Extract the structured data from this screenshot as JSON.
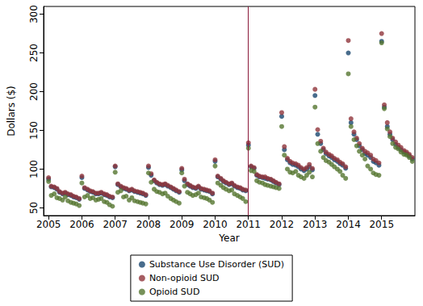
{
  "chart_data": {
    "type": "scatter",
    "x_label": "Year",
    "y_label": "Dollars ($)",
    "xlim": [
      2004.85,
      2016
    ],
    "xticks": [
      2005,
      2006,
      2007,
      2008,
      2009,
      2010,
      2011,
      2012,
      2013,
      2014,
      2015
    ],
    "ylim": [
      40,
      310
    ],
    "yticks": [
      50,
      100,
      150,
      200,
      250,
      300
    ],
    "grid": false,
    "legend": "bottom",
    "marker": "circle",
    "reference_lines": [
      {
        "x": 2011,
        "color": "#8b1a3a"
      }
    ],
    "x": [
      2005,
      2005.08,
      2005.17,
      2005.25,
      2005.33,
      2005.42,
      2005.5,
      2005.58,
      2005.67,
      2005.75,
      2005.83,
      2005.92,
      2006,
      2006.08,
      2006.17,
      2006.25,
      2006.33,
      2006.42,
      2006.5,
      2006.58,
      2006.67,
      2006.75,
      2006.83,
      2006.92,
      2007,
      2007.08,
      2007.17,
      2007.25,
      2007.33,
      2007.42,
      2007.5,
      2007.58,
      2007.67,
      2007.75,
      2007.83,
      2007.92,
      2008,
      2008.08,
      2008.17,
      2008.25,
      2008.33,
      2008.42,
      2008.5,
      2008.58,
      2008.67,
      2008.75,
      2008.83,
      2008.92,
      2009,
      2009.08,
      2009.17,
      2009.25,
      2009.33,
      2009.42,
      2009.5,
      2009.58,
      2009.67,
      2009.75,
      2009.83,
      2009.92,
      2010,
      2010.08,
      2010.17,
      2010.25,
      2010.33,
      2010.42,
      2010.5,
      2010.58,
      2010.67,
      2010.75,
      2010.83,
      2010.92,
      2011,
      2011.08,
      2011.17,
      2011.25,
      2011.33,
      2011.42,
      2011.5,
      2011.58,
      2011.67,
      2011.75,
      2011.83,
      2011.92,
      2012,
      2012.08,
      2012.17,
      2012.25,
      2012.33,
      2012.42,
      2012.5,
      2012.58,
      2012.67,
      2012.75,
      2012.83,
      2012.92,
      2013,
      2013.08,
      2013.17,
      2013.25,
      2013.33,
      2013.42,
      2013.5,
      2013.58,
      2013.67,
      2013.75,
      2013.83,
      2013.92,
      2014,
      2014.08,
      2014.17,
      2014.25,
      2014.33,
      2014.42,
      2014.5,
      2014.58,
      2014.67,
      2014.75,
      2014.83,
      2014.92,
      2015,
      2015.08,
      2015.17,
      2015.25,
      2015.33,
      2015.42,
      2015.5,
      2015.58,
      2015.67,
      2015.75,
      2015.83,
      2015.92
    ],
    "series": [
      {
        "name": "Substance Use Disorder (SUD)",
        "color": "#1a476f",
        "values": [
          87,
          77,
          76,
          74,
          70,
          68,
          69,
          67,
          66,
          64,
          63,
          61,
          89,
          75,
          73,
          71,
          70,
          68,
          68,
          69,
          67,
          66,
          64,
          63,
          103,
          80,
          77,
          75,
          74,
          72,
          73,
          71,
          70,
          69,
          68,
          66,
          102,
          92,
          85,
          82,
          80,
          79,
          80,
          78,
          76,
          74,
          72,
          70,
          99,
          85,
          80,
          78,
          76,
          75,
          77,
          74,
          73,
          72,
          71,
          68,
          110,
          90,
          87,
          84,
          82,
          80,
          81,
          78,
          76,
          75,
          73,
          72,
          131,
          103,
          101,
          92,
          90,
          89,
          88,
          87,
          86,
          84,
          82,
          80,
          168,
          125,
          112,
          108,
          106,
          105,
          103,
          100,
          98,
          100,
          103,
          99,
          195,
          145,
          133,
          125,
          120,
          117,
          115,
          112,
          110,
          107,
          105,
          101,
          250,
          160,
          145,
          138,
          130,
          125,
          120,
          118,
          115,
          110,
          108,
          105,
          265,
          180,
          155,
          145,
          138,
          132,
          128,
          125,
          122,
          120,
          117,
          113
        ]
      },
      {
        "name": "Non-opioid SUD",
        "color": "#90353b",
        "values": [
          89,
          78,
          77,
          75,
          71,
          69,
          70,
          68,
          67,
          65,
          64,
          62,
          91,
          76,
          74,
          72,
          71,
          69,
          69,
          70,
          68,
          67,
          65,
          64,
          104,
          81,
          78,
          76,
          75,
          73,
          74,
          72,
          71,
          70,
          69,
          67,
          104,
          94,
          86,
          83,
          81,
          80,
          81,
          79,
          77,
          75,
          73,
          71,
          101,
          87,
          81,
          79,
          77,
          76,
          78,
          75,
          74,
          73,
          72,
          69,
          112,
          91,
          88,
          85,
          83,
          81,
          82,
          79,
          77,
          76,
          74,
          73,
          134,
          104,
          102,
          93,
          91,
          90,
          90,
          88,
          87,
          85,
          83,
          81,
          173,
          129,
          114,
          110,
          108,
          107,
          105,
          102,
          100,
          102,
          106,
          101,
          203,
          151,
          136,
          127,
          122,
          119,
          117,
          114,
          112,
          109,
          107,
          103,
          266,
          165,
          148,
          140,
          133,
          127,
          123,
          121,
          118,
          113,
          111,
          108,
          275,
          183,
          160,
          148,
          140,
          135,
          131,
          128,
          124,
          122,
          119,
          115
        ]
      },
      {
        "name": "Opioid SUD",
        "color": "#55752f",
        "values": [
          84,
          66,
          68,
          63,
          62,
          60,
          64,
          59,
          57,
          56,
          55,
          53,
          82,
          64,
          66,
          62,
          63,
          60,
          61,
          62,
          58,
          57,
          54,
          52,
          96,
          70,
          72,
          64,
          65,
          60,
          63,
          59,
          58,
          57,
          56,
          55,
          95,
          83,
          74,
          71,
          70,
          68,
          69,
          65,
          62,
          60,
          58,
          56,
          95,
          78,
          70,
          68,
          66,
          67,
          69,
          64,
          63,
          62,
          60,
          57,
          104,
          82,
          79,
          76,
          74,
          72,
          73,
          68,
          66,
          64,
          62,
          58,
          127,
          98,
          97,
          85,
          83,
          82,
          80,
          79,
          78,
          77,
          76,
          75,
          155,
          118,
          100,
          96,
          95,
          97,
          92,
          90,
          88,
          92,
          96,
          90,
          180,
          133,
          123,
          115,
          111,
          109,
          106,
          103,
          100,
          97,
          92,
          88,
          223,
          155,
          138,
          130,
          123,
          118,
          113,
          104,
          100,
          95,
          93,
          92,
          263,
          178,
          152,
          142,
          133,
          128,
          126,
          122,
          119,
          118,
          115,
          110
        ]
      }
    ]
  }
}
